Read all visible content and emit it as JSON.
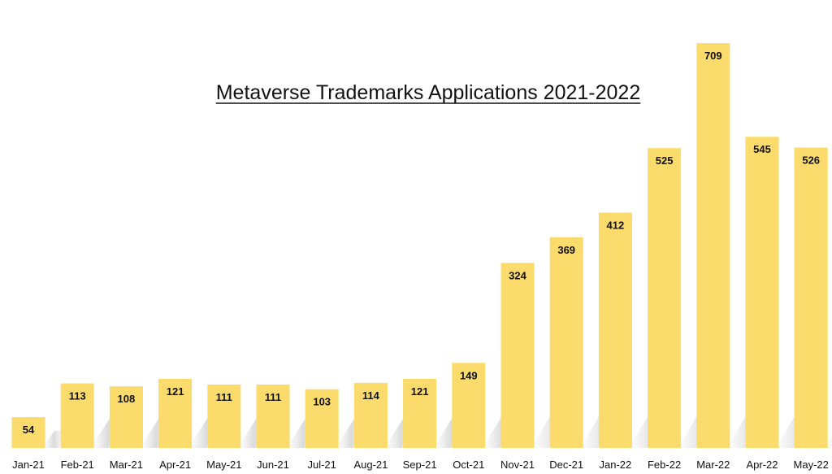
{
  "chart_data": {
    "type": "bar",
    "title": "Metaverse Trademarks Applications 2021-2022",
    "xlabel": "",
    "ylabel": "",
    "categories": [
      "Jan-21",
      "Feb-21",
      "Mar-21",
      "Apr-21",
      "May-21",
      "Jun-21",
      "Jul-21",
      "Aug-21",
      "Sep-21",
      "Oct-21",
      "Nov-21",
      "Dec-21",
      "Jan-22",
      "Feb-22",
      "Mar-22",
      "Apr-22",
      "May-22"
    ],
    "values": [
      54,
      113,
      108,
      121,
      111,
      111,
      103,
      114,
      121,
      149,
      324,
      369,
      412,
      525,
      709,
      545,
      526
    ],
    "ylim": [
      0,
      709
    ],
    "grid": false,
    "legend": "none",
    "data_labels": true,
    "colors": {
      "bar": "#FADB6B",
      "shadow": "#D9D9D9",
      "text": "#111111",
      "background": "#FFFFFF"
    }
  }
}
